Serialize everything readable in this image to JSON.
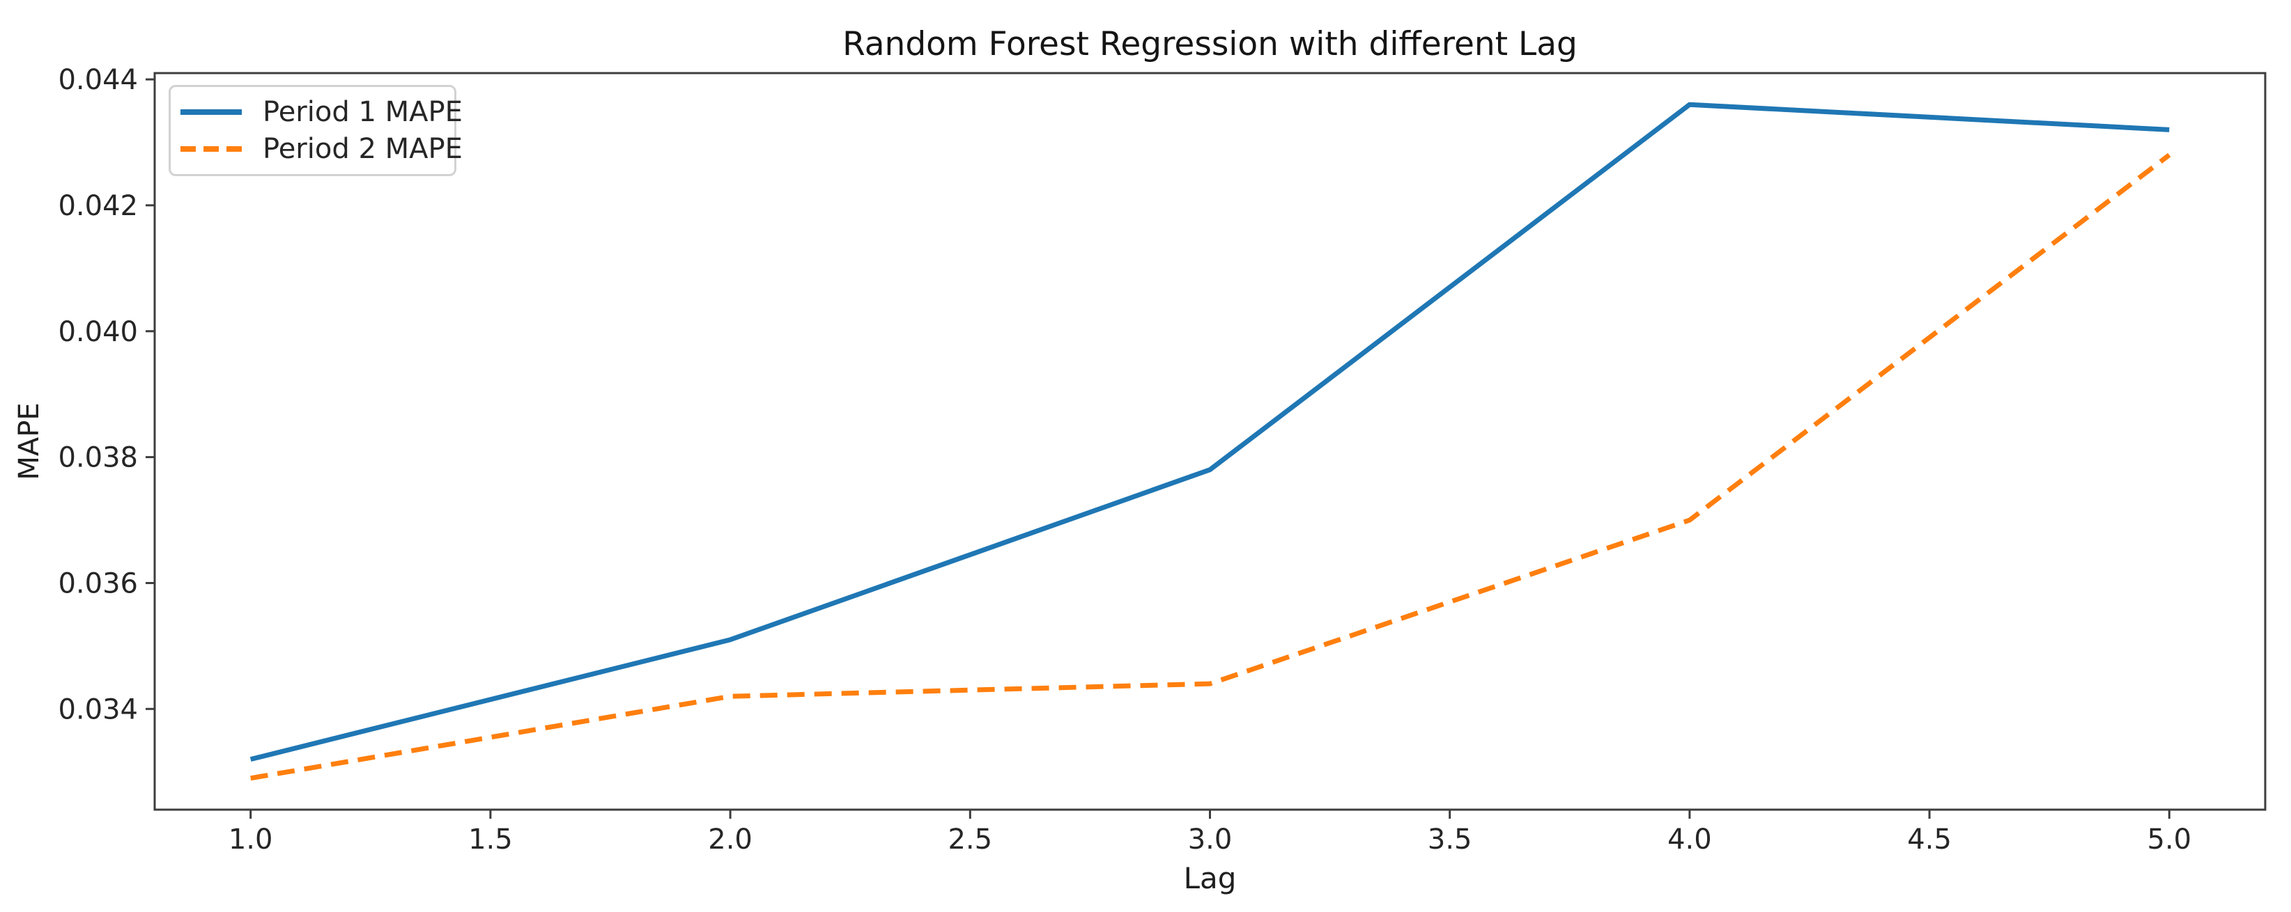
{
  "chart_data": {
    "type": "line",
    "title": "Random Forest Regression with different Lag",
    "xlabel": "Lag",
    "ylabel": "MAPE",
    "x": [
      1,
      2,
      3,
      4,
      5
    ],
    "series": [
      {
        "name": "Period 1 MAPE",
        "values": [
          0.0332,
          0.0351,
          0.0378,
          0.0436,
          0.0432
        ],
        "color": "#1f77b4",
        "style": "solid"
      },
      {
        "name": "Period 2 MAPE",
        "values": [
          0.0329,
          0.0342,
          0.0344,
          0.037,
          0.0428
        ],
        "color": "#ff7f0e",
        "style": "dashed"
      }
    ],
    "xlim": [
      0.8,
      5.2
    ],
    "ylim": [
      0.0324,
      0.0441
    ],
    "xticks": [
      1.0,
      1.5,
      2.0,
      2.5,
      3.0,
      3.5,
      4.0,
      4.5,
      5.0
    ],
    "xtick_labels": [
      "1.0",
      "1.5",
      "2.0",
      "2.5",
      "3.0",
      "3.5",
      "4.0",
      "4.5",
      "5.0"
    ],
    "yticks": [
      0.034,
      0.036,
      0.038,
      0.04,
      0.042,
      0.044
    ],
    "ytick_labels": [
      "0.034",
      "0.036",
      "0.038",
      "0.040",
      "0.042",
      "0.044"
    ],
    "grid": false,
    "legend_position": "upper left",
    "axis_color": "#3d3d3d",
    "text_color": "#262626",
    "background_color": "#ffffff"
  }
}
